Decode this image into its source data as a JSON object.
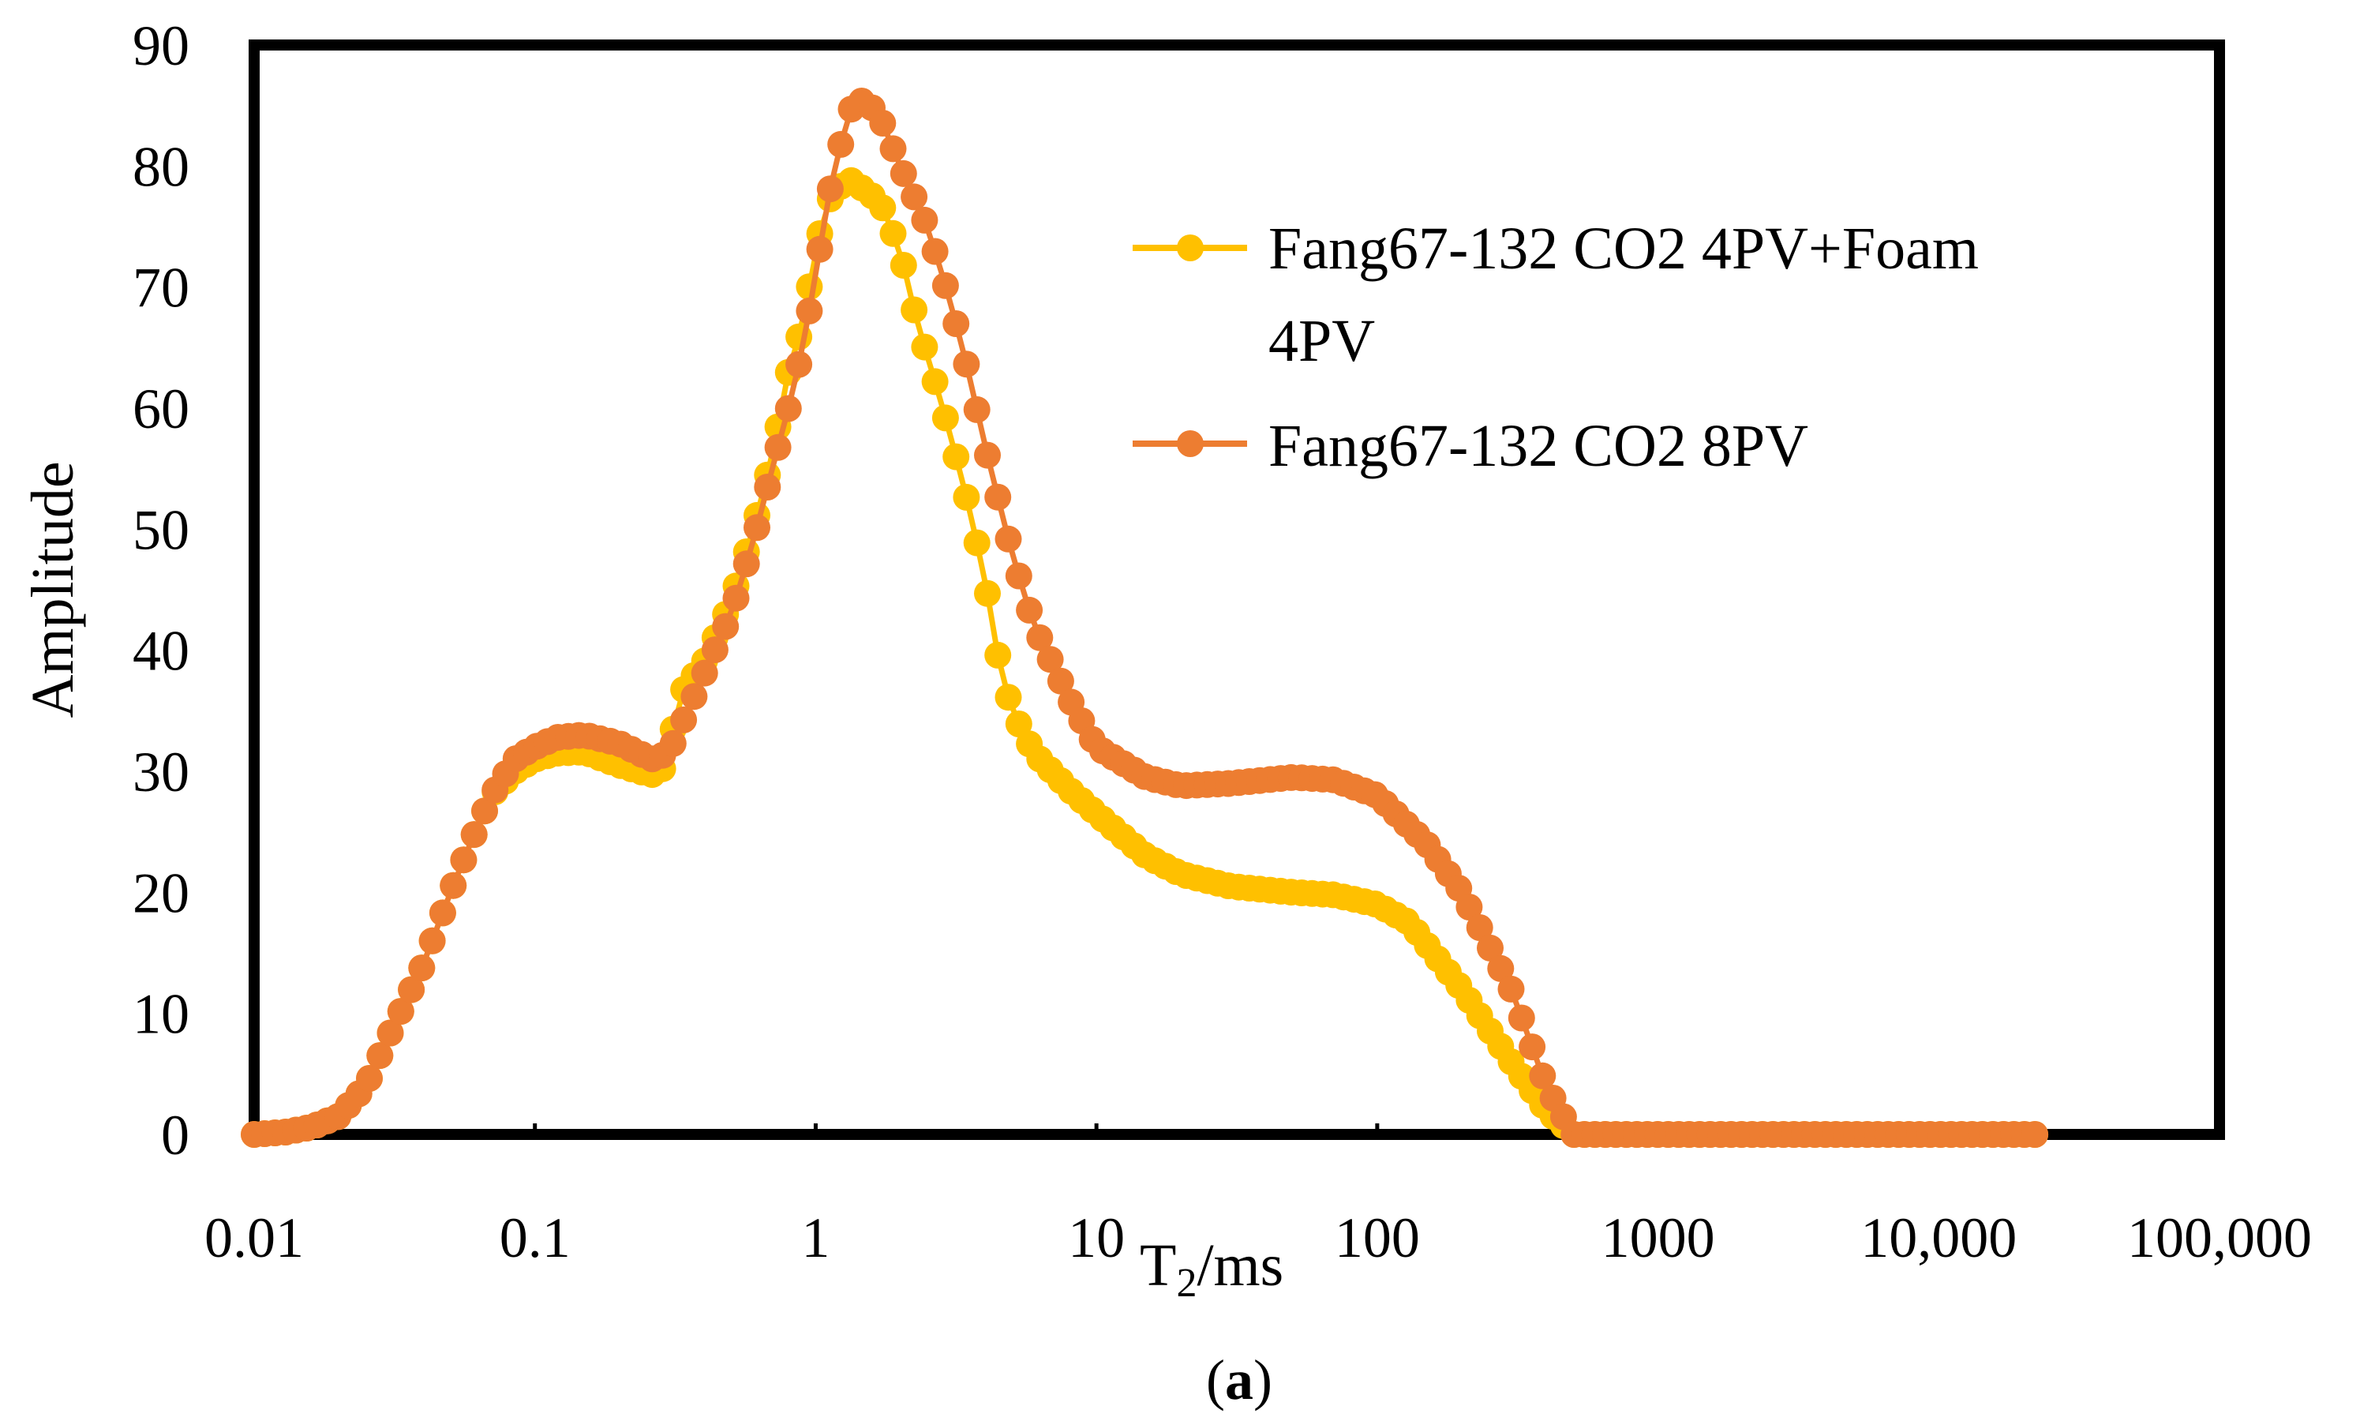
{
  "chart_data": {
    "type": "line",
    "title": "",
    "xlabel": "T2/ms",
    "xlabel_main": "T",
    "xlabel_sub": "2",
    "xlabel_rest": "/ms",
    "ylabel": "Amplitude",
    "caption_open": "(",
    "caption_letter": "a",
    "caption_close": ")",
    "x_scale": "log",
    "xlim": [
      0.01,
      100000
    ],
    "ylim": [
      0,
      90
    ],
    "x_ticks": [
      0.01,
      0.1,
      1,
      10,
      100,
      1000,
      10000,
      100000
    ],
    "x_tick_labels": [
      "0.01",
      "0.1",
      "1",
      "10",
      "100",
      "1000",
      "10,000",
      "100,000"
    ],
    "y_ticks": [
      0,
      10,
      20,
      30,
      40,
      50,
      60,
      70,
      80,
      90
    ],
    "y_tick_labels": [
      "0",
      "10",
      "20",
      "30",
      "40",
      "50",
      "60",
      "70",
      "80",
      "90"
    ],
    "grid": false,
    "legend_position": "top-right",
    "series": [
      {
        "name": "Fang67-132 CO2 4PV+Foam 4PV",
        "legend_lines": [
          "Fang67-132 CO2 4PV+Foam",
          "4PV"
        ],
        "color": "#FFC000",
        "points": [
          [
            0.01,
            0
          ],
          [
            0.013,
            0.2
          ],
          [
            0.016,
            0.6
          ],
          [
            0.02,
            1.5
          ],
          [
            0.025,
            4
          ],
          [
            0.03,
            8
          ],
          [
            0.04,
            14
          ],
          [
            0.05,
            20
          ],
          [
            0.06,
            24.5
          ],
          [
            0.07,
            28
          ],
          [
            0.085,
            30
          ],
          [
            0.1,
            31
          ],
          [
            0.12,
            31.5
          ],
          [
            0.15,
            31.6
          ],
          [
            0.2,
            30.5
          ],
          [
            0.26,
            29.7
          ],
          [
            0.3,
            30.5
          ],
          [
            0.32,
            36
          ],
          [
            0.4,
            39
          ],
          [
            0.5,
            44
          ],
          [
            0.6,
            50
          ],
          [
            0.7,
            56
          ],
          [
            0.8,
            63
          ],
          [
            0.9,
            67
          ],
          [
            1.0,
            73
          ],
          [
            1.1,
            77
          ],
          [
            1.3,
            79
          ],
          [
            1.5,
            78
          ],
          [
            1.7,
            77
          ],
          [
            2.0,
            73
          ],
          [
            2.3,
            67
          ],
          [
            2.6,
            63
          ],
          [
            3.0,
            58
          ],
          [
            3.5,
            52
          ],
          [
            4.0,
            46
          ],
          [
            4.5,
            39
          ],
          [
            5.0,
            35
          ],
          [
            6.0,
            31.5
          ],
          [
            8.0,
            28.5
          ],
          [
            10,
            26.5
          ],
          [
            15,
            23
          ],
          [
            20,
            21.5
          ],
          [
            30,
            20.5
          ],
          [
            50,
            20
          ],
          [
            70,
            19.8
          ],
          [
            100,
            19
          ],
          [
            130,
            17.5
          ],
          [
            200,
            12
          ],
          [
            300,
            6
          ],
          [
            400,
            2
          ],
          [
            500,
            0
          ],
          [
            1000,
            0
          ],
          [
            5000,
            0
          ],
          [
            10000,
            0
          ],
          [
            22000,
            0
          ]
        ]
      },
      {
        "name": "Fang67-132 CO2 8PV",
        "legend_lines": [
          "Fang67-132 CO2 8PV"
        ],
        "color": "#ED7D31",
        "points": [
          [
            0.01,
            0
          ],
          [
            0.013,
            0.2
          ],
          [
            0.016,
            0.6
          ],
          [
            0.02,
            1.5
          ],
          [
            0.025,
            4
          ],
          [
            0.03,
            8
          ],
          [
            0.04,
            14
          ],
          [
            0.05,
            20
          ],
          [
            0.06,
            24.5
          ],
          [
            0.07,
            28
          ],
          [
            0.085,
            31
          ],
          [
            0.1,
            32
          ],
          [
            0.12,
            32.8
          ],
          [
            0.15,
            33
          ],
          [
            0.2,
            32.3
          ],
          [
            0.26,
            31
          ],
          [
            0.3,
            31.5
          ],
          [
            0.35,
            35
          ],
          [
            0.4,
            38
          ],
          [
            0.5,
            43
          ],
          [
            0.6,
            49
          ],
          [
            0.7,
            55
          ],
          [
            0.8,
            60
          ],
          [
            0.9,
            65
          ],
          [
            1.0,
            71
          ],
          [
            1.1,
            77
          ],
          [
            1.2,
            81
          ],
          [
            1.35,
            85
          ],
          [
            1.5,
            85.5
          ],
          [
            1.7,
            84
          ],
          [
            2.0,
            80
          ],
          [
            2.5,
            75
          ],
          [
            3.0,
            69
          ],
          [
            3.5,
            63
          ],
          [
            4.0,
            57
          ],
          [
            5.0,
            48
          ],
          [
            6.0,
            42
          ],
          [
            8.0,
            36
          ],
          [
            10,
            32
          ],
          [
            15,
            29.5
          ],
          [
            20,
            28.8
          ],
          [
            30,
            29
          ],
          [
            50,
            29.5
          ],
          [
            70,
            29.3
          ],
          [
            100,
            28
          ],
          [
            150,
            24
          ],
          [
            200,
            20
          ],
          [
            300,
            12
          ],
          [
            400,
            4
          ],
          [
            500,
            0
          ],
          [
            1000,
            0
          ],
          [
            5000,
            0
          ],
          [
            10000,
            0
          ],
          [
            22000,
            0
          ]
        ]
      }
    ]
  }
}
